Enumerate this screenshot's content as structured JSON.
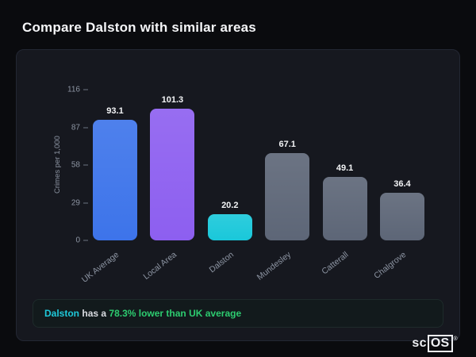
{
  "page_title": "Compare Dalston with similar areas",
  "chart_data": {
    "type": "bar",
    "categories": [
      "UK Average",
      "Local Area",
      "Dalston",
      "Mundesley",
      "Catterall",
      "Chalgrove"
    ],
    "values": [
      93.1,
      101.3,
      20.2,
      67.1,
      49.1,
      36.4
    ],
    "colors": [
      "#3d74ea",
      "#8d5ff0",
      "#1ac8da",
      "#5d6677",
      "#5d6677",
      "#5d6677"
    ],
    "title": "",
    "xlabel": "",
    "ylabel": "Crimes per 1,000",
    "ylim": [
      0,
      116
    ],
    "yticks": [
      0,
      29,
      58,
      87,
      116
    ],
    "grid": false,
    "legend": false
  },
  "summary": {
    "area": "Dalston",
    "middle": "has a",
    "highlight": "78.3% lower than UK average"
  },
  "logo": {
    "prefix": "sc",
    "suffix": "OS",
    "reg": "®"
  },
  "colors": {
    "background": "#0a0b0e",
    "card_background": "#16181f",
    "accent_cyan": "#1fc9da",
    "accent_green": "#2dcc70",
    "bar_blue": "#3d74ea",
    "bar_purple": "#8d5ff0",
    "bar_cyan": "#1ac8da",
    "bar_gray": "#5d6677",
    "axis_text": "#8d95a3"
  }
}
